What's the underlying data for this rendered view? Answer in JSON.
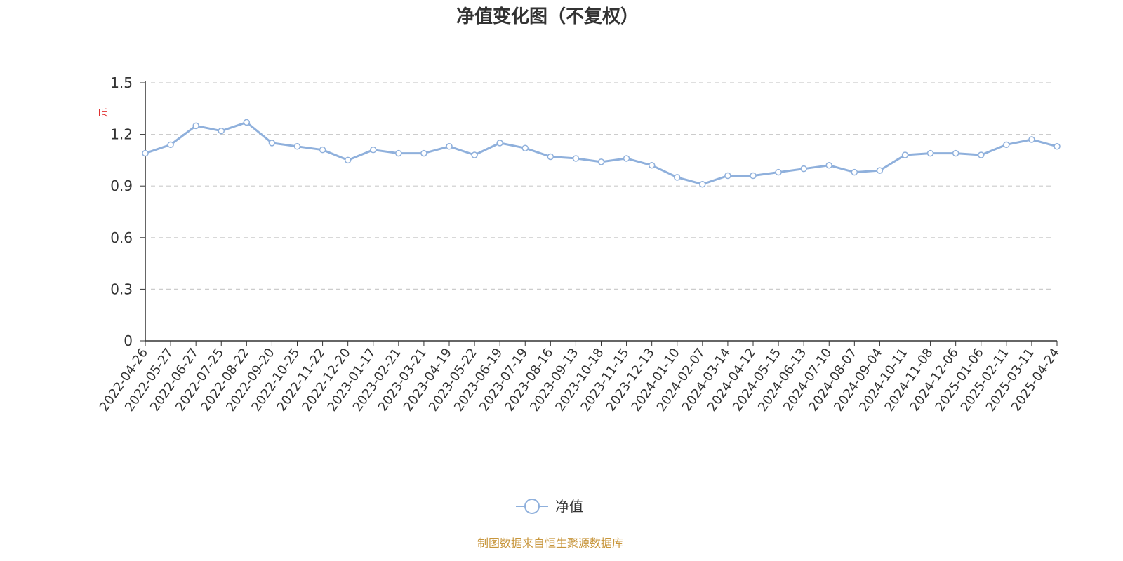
{
  "chart_data": {
    "type": "line",
    "title": "净值变化图（不复权）",
    "ylabel": "元",
    "ylim": [
      0,
      1.5
    ],
    "yticks": [
      "0",
      "0.3",
      "0.6",
      "0.9",
      "1.2",
      "1.5"
    ],
    "grid": true,
    "legend_position": "bottom",
    "x": [
      "2022-04-26",
      "2022-05-27",
      "2022-06-27",
      "2022-07-25",
      "2022-08-22",
      "2022-09-20",
      "2022-10-25",
      "2022-11-22",
      "2022-12-20",
      "2023-01-17",
      "2023-02-21",
      "2023-03-21",
      "2023-04-19",
      "2023-05-22",
      "2023-06-19",
      "2023-07-19",
      "2023-08-16",
      "2023-09-13",
      "2023-10-18",
      "2023-11-15",
      "2023-12-13",
      "2024-01-10",
      "2024-02-07",
      "2024-03-14",
      "2024-04-12",
      "2024-05-15",
      "2024-06-13",
      "2024-07-10",
      "2024-08-07",
      "2024-09-04",
      "2024-10-11",
      "2024-11-08",
      "2024-12-06",
      "2025-01-06",
      "2025-02-11",
      "2025-03-11",
      "2025-04-24"
    ],
    "series": [
      {
        "name": "净值",
        "color": "#8fb0dc",
        "values": [
          1.09,
          1.14,
          1.25,
          1.22,
          1.27,
          1.15,
          1.13,
          1.11,
          1.05,
          1.11,
          1.09,
          1.09,
          1.13,
          1.08,
          1.15,
          1.12,
          1.07,
          1.06,
          1.04,
          1.06,
          1.02,
          0.95,
          0.91,
          0.96,
          0.96,
          0.98,
          1.0,
          1.02,
          0.98,
          0.99,
          1.08,
          1.09,
          1.09,
          1.08,
          1.14,
          1.17,
          1.13
        ]
      }
    ]
  },
  "legend": {
    "label": "净值"
  },
  "source": "制图数据来自恒生聚源数据库",
  "colors": {
    "line": "#8fb0dc",
    "unit": "#e03030",
    "source": "#c8963c",
    "grid": "#cccccc"
  }
}
